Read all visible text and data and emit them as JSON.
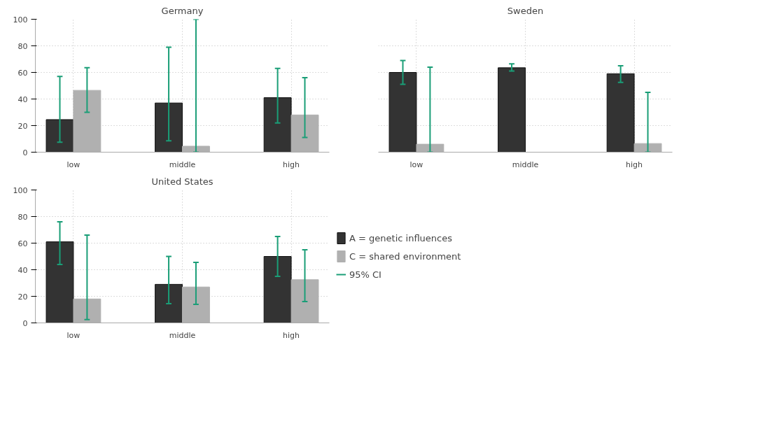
{
  "chart_data": [
    {
      "type": "bar",
      "title": "Germany",
      "categories": [
        "low",
        "middle",
        "high"
      ],
      "ylim": [
        0,
        100
      ],
      "yticks": [
        0,
        20,
        40,
        60,
        80,
        100
      ],
      "grid": true,
      "series": [
        {
          "color": "#333333",
          "values": [
            24.5,
            37,
            41
          ],
          "errors": [
            [
              7.5,
              57
            ],
            [
              8.5,
              79
            ],
            [
              22,
              63
            ]
          ]
        },
        {
          "color": "#b0b0b0",
          "values": [
            46.5,
            4.5,
            28
          ],
          "errors": [
            [
              30,
              63.5
            ],
            [
              0,
              100
            ],
            [
              11,
              56
            ]
          ]
        }
      ]
    },
    {
      "type": "bar",
      "title": "Sweden",
      "categories": [
        "low",
        "middle",
        "high"
      ],
      "ylim": [
        0,
        100
      ],
      "yticks": [
        0,
        20,
        40,
        60,
        80,
        100
      ],
      "grid": true,
      "tick_labels": "x",
      "series": [
        {
          "color": "#333333",
          "values": [
            60,
            63.5,
            59
          ],
          "errors": [
            [
              51,
              69
            ],
            [
              61,
              66.5
            ],
            [
              52.5,
              65
            ]
          ]
        },
        {
          "color": "#b0b0b0",
          "values": [
            6,
            null,
            6.5
          ],
          "errors": [
            [
              0,
              64
            ],
            null,
            [
              0,
              45
            ]
          ]
        }
      ]
    },
    {
      "type": "bar",
      "title": "United States",
      "categories": [
        "low",
        "middle",
        "high"
      ],
      "ylim": [
        0,
        100
      ],
      "yticks": [
        0,
        20,
        40,
        60,
        80,
        100
      ],
      "grid": true,
      "legend": "right",
      "annotations": [
        "95% CI"
      ],
      "series": [
        {
          "name": "A = genetic influences",
          "color": "#333333",
          "values": [
            61,
            29,
            50
          ],
          "errors": [
            [
              44,
              76
            ],
            [
              14.5,
              50
            ],
            [
              35,
              65
            ]
          ]
        },
        {
          "name": "C = shared environment",
          "color": "#b0b0b0",
          "values": [
            18,
            27,
            32.5
          ],
          "errors": [
            [
              2.5,
              66
            ],
            [
              14,
              45.5
            ],
            [
              16,
              55
            ]
          ]
        }
      ]
    }
  ]
}
